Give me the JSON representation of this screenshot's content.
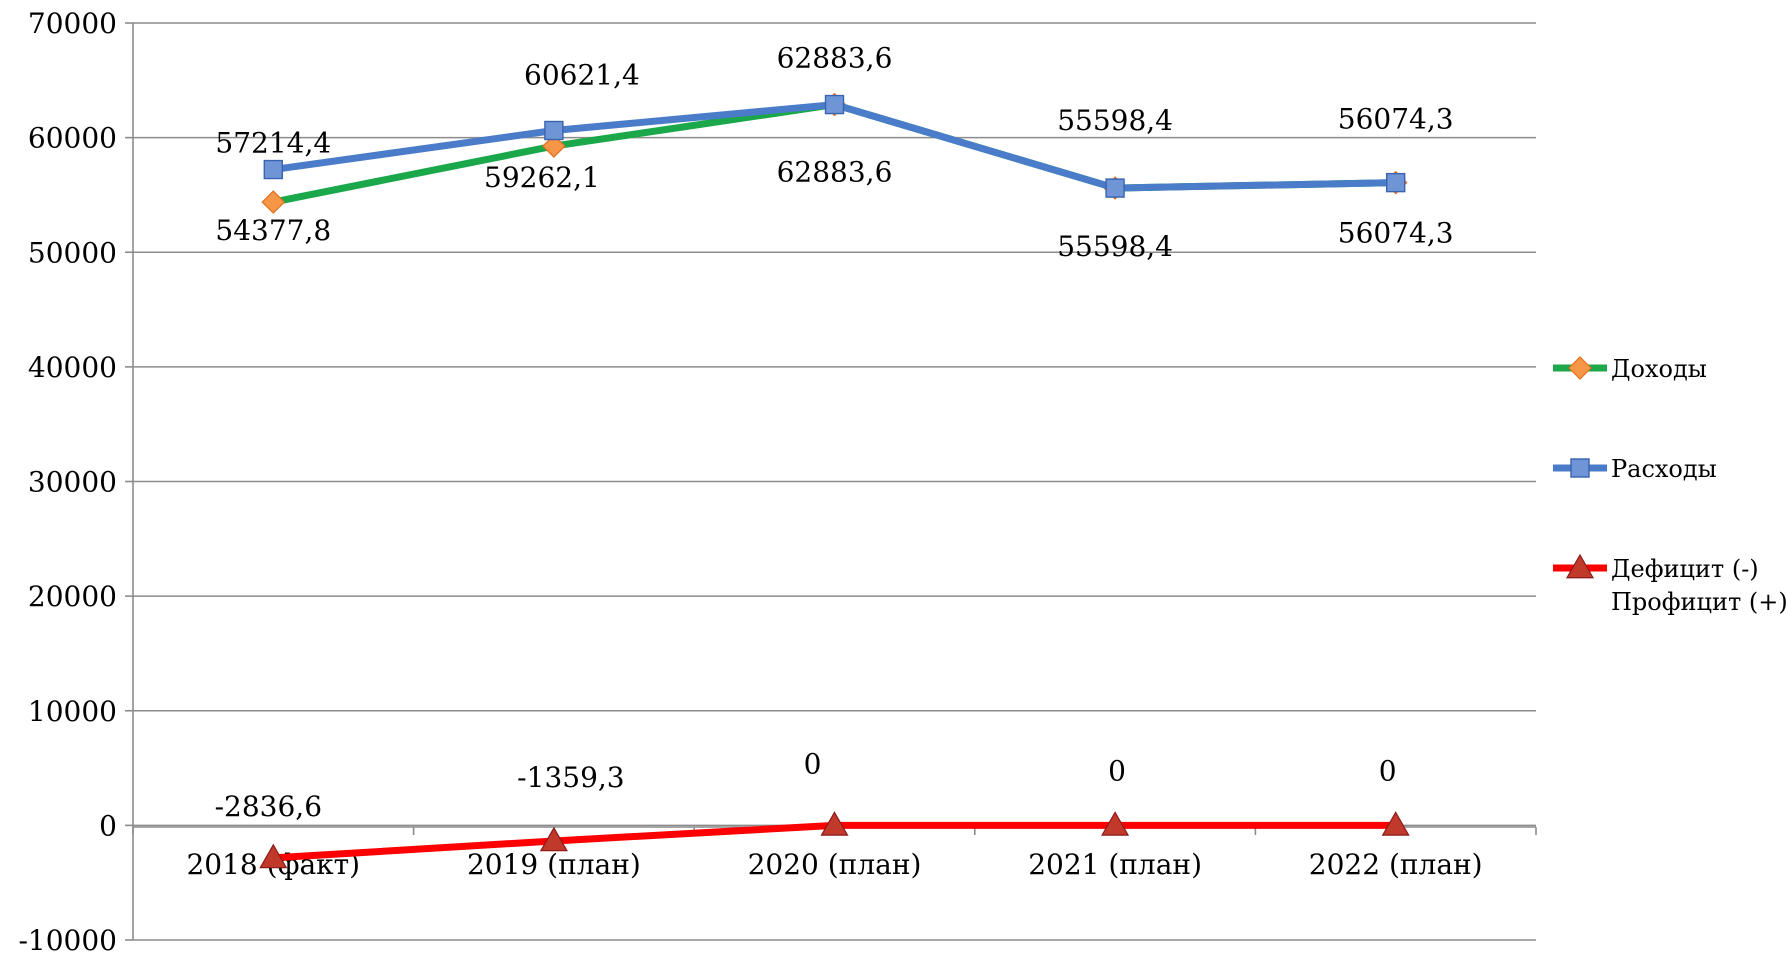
{
  "chart_data": {
    "type": "line",
    "categories": [
      "2018 (факт)",
      "2019 (план)",
      "2020 (план)",
      "2021 (план)",
      "2022 (план)"
    ],
    "y_ticks": [
      "-10000",
      "0",
      "10000",
      "20000",
      "30000",
      "40000",
      "50000",
      "60000",
      "70000"
    ],
    "ylim": [
      -10000,
      70000
    ],
    "grid": true,
    "legend_position": "right",
    "series": [
      {
        "name": "Доходы",
        "values": [
          54377.8,
          59262.1,
          62883.6,
          55598.4,
          56074.3
        ],
        "labels": [
          "54377,8",
          "59262,1",
          "62883,6",
          "55598,4",
          "56074,3"
        ],
        "color": "#1aa84a",
        "marker": "diamond",
        "marker_color": "#f79646"
      },
      {
        "name": "Расходы",
        "values": [
          57214.4,
          60621.4,
          62883.6,
          55598.4,
          56074.3
        ],
        "labels": [
          "57214,4",
          "60621,4",
          "62883,6",
          "55598,4",
          "56074,3"
        ],
        "color": "#4a7cc9",
        "marker": "square",
        "marker_color": "#6f95d6"
      },
      {
        "name": "Дефицит (-) Профицит (+)",
        "name_lines": [
          "Дефицит (-)",
          "Профицит (+)"
        ],
        "values": [
          -2836.6,
          -1359.3,
          0,
          0,
          0
        ],
        "labels": [
          "-2836,6",
          "-1359,3",
          "0",
          "0",
          "0"
        ],
        "color": "#ff0000",
        "marker": "triangle",
        "marker_color": "#c0392b"
      }
    ]
  }
}
